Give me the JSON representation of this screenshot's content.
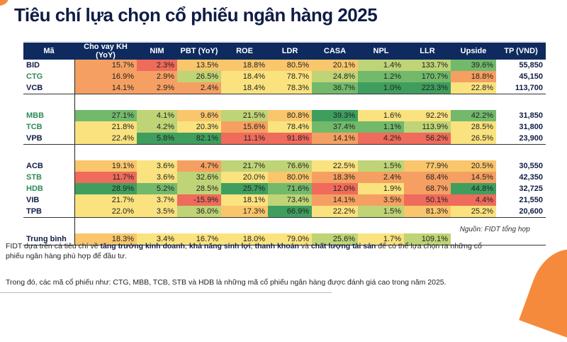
{
  "title": "Tiêu chí lựa chọn cổ phiếu ngân hàng 2025",
  "palette": {
    "dg": "#3f9e5e",
    "g": "#72b96b",
    "lg": "#bfd476",
    "y": "#fae27f",
    "lo": "#f9c66c",
    "o": "#f5a062",
    "r": "#ef6b5b"
  },
  "chart_data": {
    "type": "table",
    "columns": [
      "Mã",
      "Cho vay KH (YoY)",
      "NIM",
      "PBT (YoY)",
      "ROE",
      "LDR",
      "CASA",
      "NPL",
      "LLR",
      "Upside",
      "TP (VND)"
    ],
    "groups": [
      [
        {
          "ticker": "BID",
          "highlight": false,
          "values": [
            "15.7%",
            "2.3%",
            "13.5%",
            "18.8%",
            "80.5%",
            "20.1%",
            "1.4%",
            "133.7%",
            "39.6%"
          ],
          "colors": [
            "o",
            "r",
            "lo",
            "lo",
            "lo",
            "lo",
            "lg",
            "lg",
            "g"
          ],
          "tp": "55,850"
        },
        {
          "ticker": "CTG",
          "highlight": true,
          "values": [
            "16.9%",
            "2.9%",
            "26.5%",
            "18.4%",
            "78.7%",
            "24.8%",
            "1.2%",
            "170.7%",
            "18.8%"
          ],
          "colors": [
            "o",
            "o",
            "lg",
            "y",
            "y",
            "lg",
            "g",
            "g",
            "o"
          ],
          "tp": "45,150"
        },
        {
          "ticker": "VCB",
          "highlight": false,
          "values": [
            "14.1%",
            "2.9%",
            "2.4%",
            "18.4%",
            "78.3%",
            "36.7%",
            "1.0%",
            "223.3%",
            "22.8%"
          ],
          "colors": [
            "o",
            "o",
            "o",
            "y",
            "y",
            "g",
            "dg",
            "dg",
            "y"
          ],
          "tp": "113,700"
        }
      ],
      [
        {
          "ticker": "MBB",
          "highlight": true,
          "values": [
            "27.1%",
            "4.1%",
            "9.6%",
            "21.5%",
            "80.8%",
            "39.3%",
            "1.6%",
            "92.2%",
            "42.2%"
          ],
          "colors": [
            "g",
            "lg",
            "lo",
            "lg",
            "lo",
            "dg",
            "y",
            "y",
            "g"
          ],
          "tp": "31,850"
        },
        {
          "ticker": "TCB",
          "highlight": true,
          "values": [
            "21.8%",
            "4.2%",
            "20.3%",
            "15.6%",
            "78.4%",
            "37.4%",
            "1.1%",
            "113.9%",
            "28.5%"
          ],
          "colors": [
            "y",
            "lg",
            "y",
            "o",
            "y",
            "g",
            "g",
            "lg",
            "y"
          ],
          "tp": "31,800"
        },
        {
          "ticker": "VPB",
          "highlight": false,
          "values": [
            "22.4%",
            "5.8%",
            "82.1%",
            "11.1%",
            "91.8%",
            "14.1%",
            "4.2%",
            "56.2%",
            "26.5%"
          ],
          "colors": [
            "y",
            "dg",
            "dg",
            "r",
            "r",
            "o",
            "r",
            "r",
            "y"
          ],
          "tp": "23,900"
        }
      ],
      [
        {
          "ticker": "ACB",
          "highlight": false,
          "values": [
            "19.1%",
            "3.6%",
            "4.7%",
            "21.7%",
            "76.6%",
            "22.5%",
            "1.5%",
            "77.9%",
            "20.5%"
          ],
          "colors": [
            "lo",
            "y",
            "o",
            "lg",
            "lg",
            "y",
            "lg",
            "lo",
            "lo"
          ],
          "tp": "30,550"
        },
        {
          "ticker": "STB",
          "highlight": true,
          "values": [
            "11.7%",
            "3.6%",
            "32.6%",
            "20.0%",
            "80.0%",
            "18.3%",
            "2.4%",
            "68.4%",
            "14.5%"
          ],
          "colors": [
            "r",
            "y",
            "lg",
            "y",
            "lo",
            "o",
            "o",
            "o",
            "o"
          ],
          "tp": "42,350"
        },
        {
          "ticker": "HDB",
          "highlight": true,
          "values": [
            "28.9%",
            "5.2%",
            "28.5%",
            "25.7%",
            "71.6%",
            "12.0%",
            "1.9%",
            "68.7%",
            "44.8%"
          ],
          "colors": [
            "dg",
            "g",
            "lg",
            "dg",
            "g",
            "r",
            "y",
            "o",
            "dg"
          ],
          "tp": "32,725"
        },
        {
          "ticker": "VIB",
          "highlight": false,
          "values": [
            "21.7%",
            "3.7%",
            "-15.9%",
            "18.1%",
            "73.4%",
            "14.1%",
            "3.5%",
            "50.1%",
            "4.4%"
          ],
          "colors": [
            "y",
            "y",
            "r",
            "y",
            "lg",
            "o",
            "o",
            "r",
            "r"
          ],
          "tp": "21,550"
        },
        {
          "ticker": "TPB",
          "highlight": false,
          "values": [
            "22.0%",
            "3.5%",
            "36.0%",
            "17.3%",
            "66.9%",
            "22.2%",
            "1.5%",
            "81.3%",
            "25.2%"
          ],
          "colors": [
            "y",
            "y",
            "lg",
            "lo",
            "dg",
            "y",
            "lg",
            "lo",
            "y"
          ],
          "tp": "20,600"
        }
      ]
    ],
    "average": {
      "label": "Trung bình",
      "values": [
        "18.3%",
        "3.4%",
        "16.7%",
        "18.0%",
        "79.0%",
        "25.6%",
        "1.7%",
        "109.1%"
      ],
      "colors": [
        "lo",
        "y",
        "y",
        "y",
        "y",
        "lg",
        "y",
        "lg"
      ]
    }
  },
  "source": "Nguồn: FIDT tổng hợp",
  "paragraph1": {
    "p1": "FIDT dựa trên cá tiêu chí về ",
    "b1": "tăng trưởng kinh doanh",
    "p2": ", ",
    "b2": "khả năng sinh lợi",
    "p3": ", ",
    "b3": "thanh khoản",
    "p4": " và ",
    "b4": "chất lượng tài sản",
    "p5": " để có thể lựa chọn ra những cổ phiếu ngân hàng phù hợp để đầu tư."
  },
  "paragraph2": "Trong đó, các mã cổ phiếu như: CTG, MBB, TCB, STB và HDB là những mã cổ phiếu ngân hàng được đánh giá cao trong năm 2025."
}
